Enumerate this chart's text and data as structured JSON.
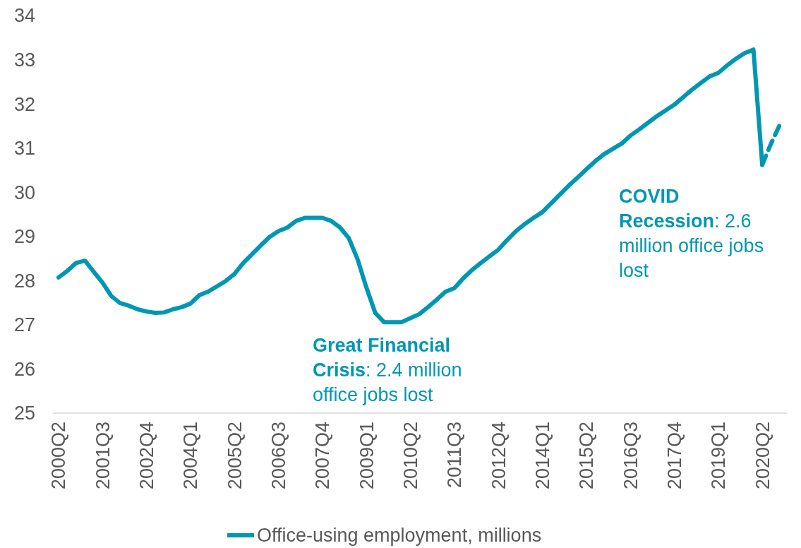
{
  "chart_data": {
    "type": "line",
    "categories": [
      "2000Q2",
      null,
      null,
      null,
      null,
      "2001Q3",
      null,
      null,
      null,
      null,
      "2002Q4",
      null,
      null,
      null,
      null,
      "2004Q1",
      null,
      null,
      null,
      null,
      "2005Q2",
      null,
      null,
      null,
      null,
      "2006Q3",
      null,
      null,
      null,
      null,
      "2007Q4",
      null,
      null,
      null,
      null,
      "2009Q1",
      null,
      null,
      null,
      null,
      "2010Q2",
      null,
      null,
      null,
      null,
      "2011Q3",
      null,
      null,
      null,
      null,
      "2012Q4",
      null,
      null,
      null,
      null,
      "2014Q1",
      null,
      null,
      null,
      null,
      "2015Q2",
      null,
      null,
      null,
      null,
      "2016Q3",
      null,
      null,
      null,
      null,
      "2017Q4",
      null,
      null,
      null,
      null,
      "2019Q1",
      null,
      null,
      null,
      null,
      "2020Q2",
      null,
      null
    ],
    "series": [
      {
        "name": "Office-using employment, millions",
        "color": "#0097b2",
        "line_style": "solid",
        "values": [
          28.07,
          28.22,
          28.4,
          28.45,
          28.2,
          27.95,
          27.65,
          27.49,
          27.43,
          27.35,
          27.3,
          27.27,
          27.28,
          27.35,
          27.4,
          27.48,
          27.67,
          27.75,
          27.87,
          27.99,
          28.15,
          28.4,
          28.6,
          28.8,
          28.99,
          29.12,
          29.2,
          29.35,
          29.42,
          29.42,
          29.42,
          29.35,
          29.2,
          28.96,
          28.48,
          27.84,
          27.27,
          27.06,
          27.06,
          27.06,
          27.15,
          27.24,
          27.4,
          27.57,
          27.75,
          27.83,
          28.05,
          28.24,
          28.4,
          28.55,
          28.7,
          28.92,
          29.12,
          29.28,
          29.42,
          29.55,
          29.75,
          29.95,
          30.15,
          30.33,
          30.52,
          30.7,
          30.86,
          30.98,
          31.1,
          31.28,
          31.42,
          31.57,
          31.72,
          31.85,
          31.98,
          32.15,
          32.32,
          32.47,
          32.62,
          32.7,
          32.87,
          33.02,
          33.15,
          33.23,
          30.62,
          null,
          null
        ]
      },
      {
        "color": "#0097b2",
        "line_style": "dashed",
        "values": [
          null,
          null,
          null,
          null,
          null,
          null,
          null,
          null,
          null,
          null,
          null,
          null,
          null,
          null,
          null,
          null,
          null,
          null,
          null,
          null,
          null,
          null,
          null,
          null,
          null,
          null,
          null,
          null,
          null,
          null,
          null,
          null,
          null,
          null,
          null,
          null,
          null,
          null,
          null,
          null,
          null,
          null,
          null,
          null,
          null,
          null,
          null,
          null,
          null,
          null,
          null,
          null,
          null,
          null,
          null,
          null,
          null,
          null,
          null,
          null,
          null,
          null,
          null,
          null,
          null,
          null,
          null,
          null,
          null,
          null,
          null,
          null,
          null,
          null,
          null,
          null,
          null,
          null,
          null,
          null,
          30.62,
          31.1,
          31.53
        ]
      }
    ],
    "ylim": [
      25,
      34
    ],
    "yticks": [
      25,
      26,
      27,
      28,
      29,
      30,
      31,
      32,
      33,
      34
    ],
    "legend": "bottom",
    "annotations": [
      "Great Financial Crisis: 2.4 million office jobs lost",
      "COVID Recession: 2.6 million office jobs lost"
    ]
  }
}
